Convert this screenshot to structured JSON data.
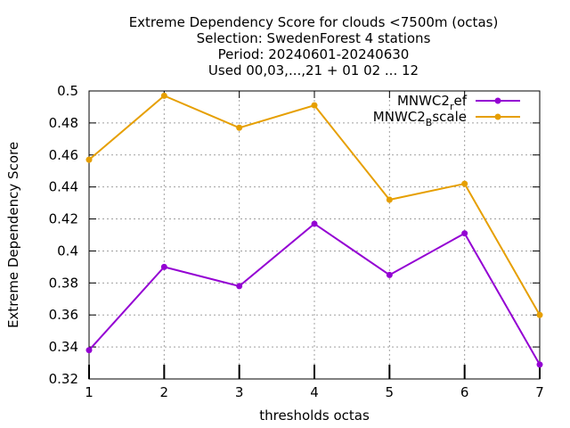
{
  "chart_data": {
    "type": "line",
    "title_lines": [
      "Extreme Dependency Score  for clouds <7500m (octas)",
      "Selection: SwedenForest      4 stations",
      "Period: 20240601-20240630",
      "Used 00,03,...,21 + 01 02 ... 12"
    ],
    "xlabel": "thresholds octas",
    "ylabel": "Extreme Dependency Score",
    "x": [
      1,
      2,
      3,
      4,
      5,
      6,
      7
    ],
    "xlim": [
      1,
      7
    ],
    "ylim": [
      0.32,
      0.5
    ],
    "x_ticks": [
      "1",
      "2",
      "3",
      "4",
      "5",
      "6",
      "7"
    ],
    "y_ticks": [
      "0.32",
      "0.34",
      "0.36",
      "0.38",
      "0.4",
      "0.42",
      "0.44",
      "0.46",
      "0.48",
      "0.5"
    ],
    "grid": true,
    "legend_position": "top-right",
    "series": [
      {
        "name_main": "MNWC2",
        "name_sub": "r",
        "name_rest": "ef",
        "color": "#9400d3",
        "values": [
          0.338,
          0.39,
          0.378,
          0.417,
          0.385,
          0.411,
          0.329
        ]
      },
      {
        "name_main": "MNWC2",
        "name_sub": "B",
        "name_rest": "scale",
        "color": "#e69f00",
        "values": [
          0.457,
          0.497,
          0.477,
          0.491,
          0.432,
          0.442,
          0.36
        ]
      }
    ]
  }
}
